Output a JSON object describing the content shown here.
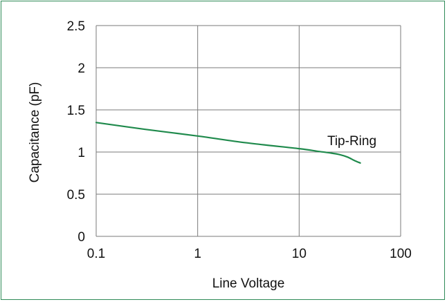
{
  "chart_data": {
    "type": "line",
    "xscale": "log",
    "xlim": [
      0.1,
      100
    ],
    "ylim": [
      0,
      2.5
    ],
    "xticks": [
      "0.1",
      "1",
      "10",
      "100"
    ],
    "yticks": [
      "0",
      "0.5",
      "1",
      "1.5",
      "2",
      "2.5"
    ],
    "xlabel": "Line Voltage",
    "ylabel": "Capacitance  (pF)",
    "grid": true,
    "series": [
      {
        "name": "Tip-Ring",
        "color": "#1f8a4c",
        "x": [
          0.1,
          0.3,
          1,
          3,
          10,
          15,
          20,
          25,
          30,
          35,
          40
        ],
        "y": [
          1.35,
          1.27,
          1.19,
          1.11,
          1.04,
          1.01,
          0.99,
          0.97,
          0.94,
          0.9,
          0.87
        ]
      }
    ]
  },
  "colors": {
    "frame": "#2e8b57",
    "grid": "#7a7a7a",
    "line": "#1f8a4c"
  }
}
